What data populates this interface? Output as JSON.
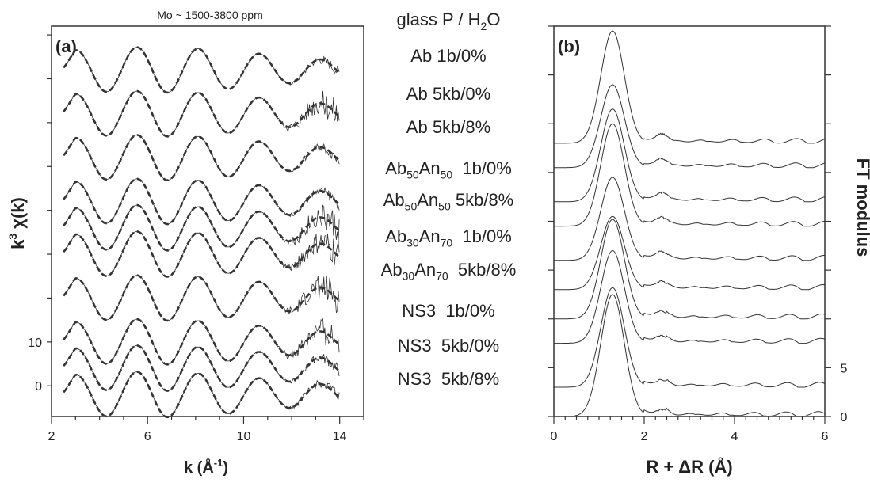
{
  "header": {
    "mo_range": "Mo ~ 1500-3800 ppm",
    "column_heading_main": "glass  P / H",
    "column_heading_sub": "2",
    "column_heading_tail": "O"
  },
  "samples": [
    {
      "base": "Ab",
      "sub1": "",
      "mid": "",
      "sub2": "",
      "cond": " 1b/0%"
    },
    {
      "base": "Ab",
      "sub1": "",
      "mid": "",
      "sub2": "",
      "cond": " 5kb/0%"
    },
    {
      "base": "Ab",
      "sub1": "",
      "mid": "",
      "sub2": "",
      "cond": " 5kb/8%"
    },
    {
      "base": "Ab",
      "sub1": "50",
      "mid": "An",
      "sub2": "50",
      "cond": "  1b/0%"
    },
    {
      "base": "Ab",
      "sub1": "50",
      "mid": "An",
      "sub2": "50",
      "cond": " 5kb/8%"
    },
    {
      "base": "Ab",
      "sub1": "30",
      "mid": "An",
      "sub2": "70",
      "cond": "  1b/0%"
    },
    {
      "base": "Ab",
      "sub1": "30",
      "mid": "An",
      "sub2": "70",
      "cond": "  5kb/8%"
    },
    {
      "base": "NS3",
      "sub1": "",
      "mid": "",
      "sub2": "",
      "cond": "  1b/0%"
    },
    {
      "base": "NS3",
      "sub1": "",
      "mid": "",
      "sub2": "",
      "cond": "  5kb/0%"
    },
    {
      "base": "NS3",
      "sub1": "",
      "mid": "",
      "sub2": "",
      "cond": "  5kb/8%"
    }
  ],
  "chart_data": [
    {
      "type": "line",
      "panel": "(a)",
      "xlabel_main": "k (Å",
      "xlabel_sup": "-1",
      "xlabel_tail": ")",
      "ylabel_main": "k",
      "ylabel_sup": "3",
      "ylabel_tail": " χ(k)",
      "xlim": [
        2,
        15
      ],
      "ylim": [
        -7,
        82
      ],
      "xticks": [
        2,
        6,
        10,
        14
      ],
      "yticks": [
        0,
        10
      ],
      "k_range": [
        2.5,
        14
      ],
      "offsets": [
        72,
        62,
        52,
        42,
        36,
        30,
        20,
        10,
        4,
        -2
      ],
      "styles": {
        "data": "thin solid",
        "fit": "thick dashed"
      }
    },
    {
      "type": "line",
      "panel": "(b)",
      "xlabel": "R + ΔR (Å)",
      "ylabel": "FT modulus",
      "xlim": [
        0,
        6
      ],
      "ylim": [
        0,
        40
      ],
      "xticks": [
        0,
        2,
        4,
        6
      ],
      "yticks": [
        0,
        5
      ],
      "peak_R": 1.3,
      "offsets": [
        28,
        25.5,
        22,
        19.5,
        16,
        13,
        10,
        7.5,
        3,
        0
      ]
    }
  ]
}
